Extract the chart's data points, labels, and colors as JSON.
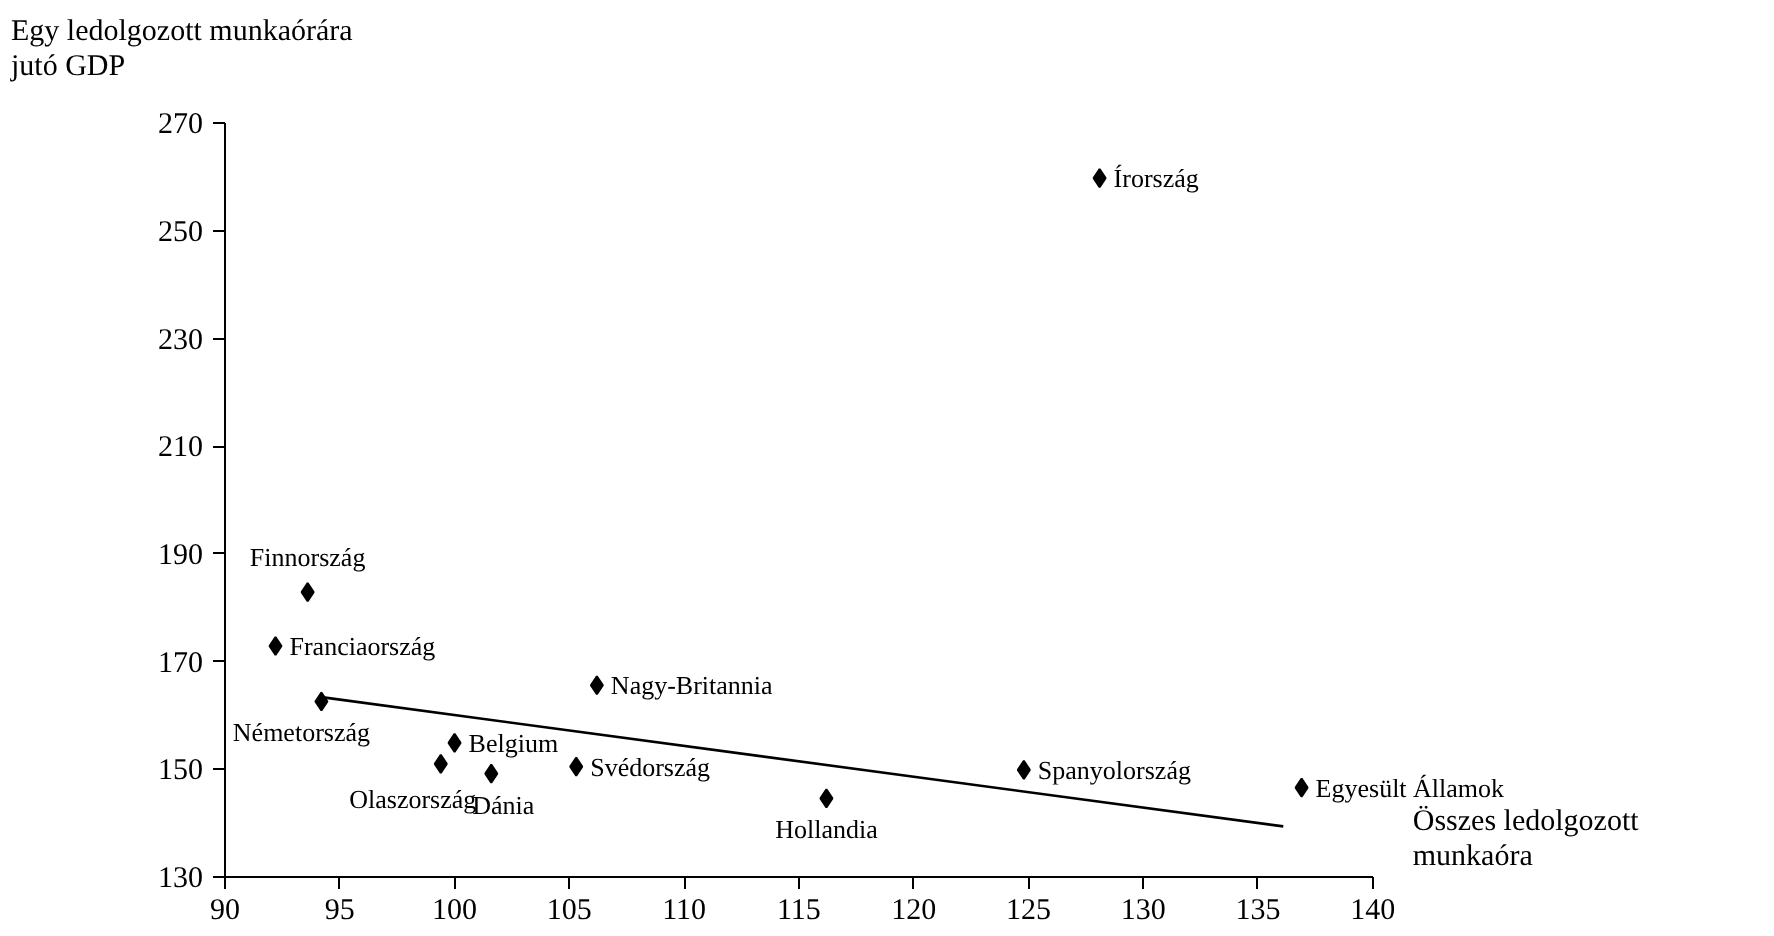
{
  "chart_data": {
    "type": "scatter",
    "xlabel": "Összes ledolgozott\nmunkaóra",
    "ylabel": "Egy ledolgozott munkaórára\njutó GDP",
    "xlim": [
      90,
      140
    ],
    "xticks": [
      90,
      95,
      100,
      105,
      110,
      115,
      120,
      125,
      130,
      135,
      140
    ],
    "ylim": [
      130,
      270
    ],
    "yticks": [
      130,
      150,
      170,
      190,
      210,
      230,
      250,
      270
    ],
    "grid": false,
    "marker": "diamond",
    "series": [
      {
        "color": "#000000",
        "x": [
          93.6,
          92.2,
          94.2,
          106.2,
          100.0,
          99.4,
          101.6,
          105.3,
          116.2,
          124.8,
          136.9,
          128.1
        ],
        "values": [
          182.9,
          172.9,
          162.6,
          165.6,
          154.9,
          151.0,
          149.2,
          150.5,
          144.6,
          149.9,
          146.6,
          259.8
        ]
      },
      {
        "type": "line",
        "color": "#000000",
        "line_style": "solid",
        "marker": "none",
        "x": [
          94.2,
          136.1
        ],
        "values": [
          163.4,
          139.4
        ]
      }
    ],
    "annotations": [
      {
        "text": "Finnország",
        "x": 93.6,
        "y": 182.9
      },
      {
        "text": "Franciaország",
        "x": 92.2,
        "y": 172.9
      },
      {
        "text": "Németország",
        "x": 94.2,
        "y": 162.6
      },
      {
        "text": "Nagy-Britannia",
        "x": 106.2,
        "y": 165.6
      },
      {
        "text": "Belgium",
        "x": 100.0,
        "y": 154.9
      },
      {
        "text": "Olaszország",
        "x": 99.4,
        "y": 151.0
      },
      {
        "text": "Dánia",
        "x": 101.6,
        "y": 149.2
      },
      {
        "text": "Svédország",
        "x": 105.3,
        "y": 150.5
      },
      {
        "text": "Hollandia",
        "x": 116.2,
        "y": 144.6
      },
      {
        "text": "Spanyolország",
        "x": 124.8,
        "y": 149.9
      },
      {
        "text": "Egyesült Államok",
        "x": 136.9,
        "y": 146.6
      },
      {
        "text": "Írország",
        "x": 128.1,
        "y": 259.8
      }
    ]
  }
}
